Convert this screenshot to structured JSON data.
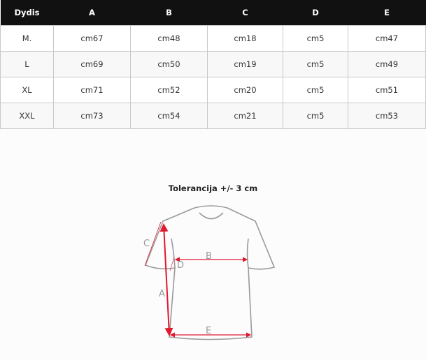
{
  "table": {
    "headers": [
      "Dydis",
      "A",
      "B",
      "C",
      "D",
      "E"
    ],
    "rows": [
      [
        "M.",
        "cm67",
        "cm48",
        "cm18",
        "cm5",
        "cm47"
      ],
      [
        "L",
        "cm69",
        "cm50",
        "cm19",
        "cm5",
        "cm49"
      ],
      [
        "XL",
        "cm71",
        "cm52",
        "cm20",
        "cm5",
        "cm51"
      ],
      [
        "XXL",
        "cm73",
        "cm54",
        "cm21",
        "cm5",
        "cm53"
      ]
    ]
  },
  "diagram": {
    "title": "Tolerancija +/- 3 cm",
    "labels": {
      "a": "A",
      "b": "B",
      "c": "C",
      "d": "D",
      "e": "E"
    },
    "arrow_color": "#e0192f",
    "outline_color": "#999999"
  }
}
